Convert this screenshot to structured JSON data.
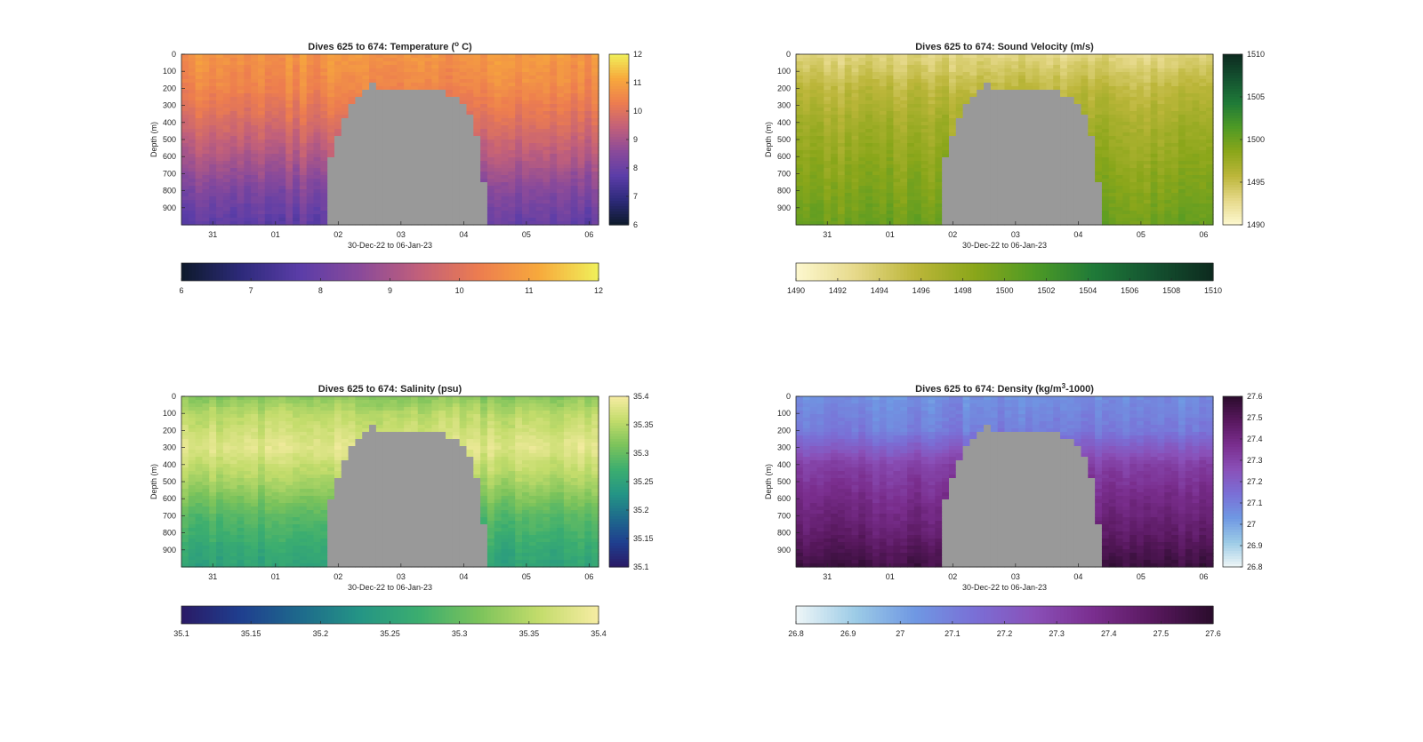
{
  "figure": {
    "panels": [
      {
        "id": "temperature",
        "title": "Dives 625 to 674: Temperature (",
        "title_sup": "o",
        "title_tail": " C)",
        "xlabel": "30-Dec-22 to 06-Jan-23",
        "ylabel": "Depth (m)",
        "xticks": [
          "31",
          "01",
          "02",
          "03",
          "04",
          "05",
          "06"
        ],
        "yticks": [
          "0",
          "100",
          "200",
          "300",
          "400",
          "500",
          "600",
          "700",
          "800",
          "900"
        ],
        "vertical_colorbar_ticks": [
          "12",
          "11",
          "10",
          "9",
          "8",
          "7",
          "6"
        ],
        "horizontal_colorbar_ticks": [
          "6",
          "7",
          "8",
          "9",
          "10",
          "11",
          "12"
        ],
        "colormap": [
          "#0d1a2b",
          "#2d2a7a",
          "#5b3da8",
          "#8a4a9a",
          "#c2607a",
          "#ed7d4f",
          "#f7a93c",
          "#f0f05a"
        ]
      },
      {
        "id": "sound-velocity",
        "title": "Dives 625 to 674: Sound Velocity (m/s)",
        "title_sup": "",
        "title_tail": "",
        "xlabel": "30-Dec-22 to 06-Jan-23",
        "ylabel": "Depth (m)",
        "xticks": [
          "31",
          "01",
          "02",
          "03",
          "04",
          "05",
          "06"
        ],
        "yticks": [
          "0",
          "100",
          "200",
          "300",
          "400",
          "500",
          "600",
          "700",
          "800",
          "900"
        ],
        "vertical_colorbar_ticks": [
          "1510",
          "1505",
          "1500",
          "1495",
          "1490"
        ],
        "horizontal_colorbar_ticks": [
          "1490",
          "1492",
          "1494",
          "1496",
          "1498",
          "1500",
          "1502",
          "1504",
          "1506",
          "1508",
          "1510"
        ],
        "colormap": [
          "#fdf8cf",
          "#e6d98a",
          "#bcb63a",
          "#8aa61a",
          "#4e9a25",
          "#1f7a38",
          "#145230",
          "#0d2a1f"
        ]
      },
      {
        "id": "salinity",
        "title": "Dives 625 to 674: Salinity (psu)",
        "title_sup": "",
        "title_tail": "",
        "xlabel": "30-Dec-22 to 06-Jan-23",
        "ylabel": "Depth (m)",
        "xticks": [
          "31",
          "01",
          "02",
          "03",
          "04",
          "05",
          "06"
        ],
        "yticks": [
          "0",
          "100",
          "200",
          "300",
          "400",
          "500",
          "600",
          "700",
          "800",
          "900"
        ],
        "vertical_colorbar_ticks": [
          "35.4",
          "35.35",
          "35.3",
          "35.25",
          "35.2",
          "35.15",
          "35.1"
        ],
        "horizontal_colorbar_ticks": [
          "35.1",
          "35.15",
          "35.2",
          "35.25",
          "35.3",
          "35.35",
          "35.4"
        ],
        "colormap": [
          "#2a1a66",
          "#1f3f8f",
          "#1e6a8c",
          "#249585",
          "#3cae6f",
          "#7cc35b",
          "#c3dc6b",
          "#f7eca3"
        ]
      },
      {
        "id": "density",
        "title": "Dives 625 to 674: Density (kg/m",
        "title_sup": "3",
        "title_tail": "-1000)",
        "xlabel": "30-Dec-22 to 06-Jan-23",
        "ylabel": "Depth (m)",
        "xticks": [
          "31",
          "01",
          "02",
          "03",
          "04",
          "05",
          "06"
        ],
        "yticks": [
          "0",
          "100",
          "200",
          "300",
          "400",
          "500",
          "600",
          "700",
          "800",
          "900"
        ],
        "vertical_colorbar_ticks": [
          "27.6",
          "27.5",
          "27.4",
          "27.3",
          "27.2",
          "27.1",
          "27",
          "26.9",
          "26.8"
        ],
        "horizontal_colorbar_ticks": [
          "26.8",
          "26.9",
          "27",
          "27.1",
          "27.2",
          "27.3",
          "27.4",
          "27.5",
          "27.6"
        ],
        "colormap": [
          "#eef6f7",
          "#9ccbe6",
          "#6f98e3",
          "#7a6fd6",
          "#8a50b8",
          "#7a2e8e",
          "#58185e",
          "#2a0c2c"
        ]
      }
    ]
  },
  "chart_data": [
    {
      "type": "heatmap",
      "title": "Dives 625 to 674: Temperature (o C)",
      "xlabel": "30-Dec-22 to 06-Jan-23",
      "ylabel": "Depth (m)",
      "x": [
        "31",
        "01",
        "02",
        "03",
        "04",
        "05",
        "06"
      ],
      "ylim": [
        0,
        1000
      ],
      "clim": [
        6,
        12
      ],
      "profile": {
        "depth": [
          0,
          200,
          400,
          600,
          800,
          1000
        ],
        "value": [
          10.8,
          10.5,
          9.9,
          9.2,
          8.4,
          7.8
        ]
      },
      "legend": "colorbar right and colorbar bottom"
    },
    {
      "type": "heatmap",
      "title": "Dives 625 to 674: Sound Velocity (m/s)",
      "xlabel": "30-Dec-22 to 06-Jan-23",
      "ylabel": "Depth (m)",
      "x": [
        "31",
        "01",
        "02",
        "03",
        "04",
        "05",
        "06"
      ],
      "ylim": [
        0,
        1000
      ],
      "clim": [
        1490,
        1510
      ],
      "profile": {
        "depth": [
          0,
          200,
          400,
          600,
          800,
          1000
        ],
        "value": [
          1493,
          1495.5,
          1497,
          1498,
          1499,
          1500
        ]
      },
      "legend": "colorbar right and colorbar bottom"
    },
    {
      "type": "heatmap",
      "title": "Dives 625 to 674: Salinity (psu)",
      "xlabel": "30-Dec-22 to 06-Jan-23",
      "ylabel": "Depth (m)",
      "x": [
        "31",
        "01",
        "02",
        "03",
        "04",
        "05",
        "06"
      ],
      "ylim": [
        0,
        1000
      ],
      "clim": [
        35.1,
        35.4
      ],
      "profile": {
        "depth": [
          0,
          100,
          300,
          500,
          700,
          900,
          1000
        ],
        "value": [
          35.32,
          35.35,
          35.38,
          35.34,
          35.29,
          35.26,
          35.25
        ]
      },
      "legend": "colorbar right and colorbar bottom"
    },
    {
      "type": "heatmap",
      "title": "Dives 625 to 674: Density (kg/m3-1000)",
      "xlabel": "30-Dec-22 to 06-Jan-23",
      "ylabel": "Depth (m)",
      "x": [
        "31",
        "01",
        "02",
        "03",
        "04",
        "05",
        "06"
      ],
      "ylim": [
        0,
        1000
      ],
      "clim": [
        26.8,
        27.6
      ],
      "profile": {
        "depth": [
          0,
          200,
          400,
          600,
          800,
          1000
        ],
        "value": [
          27.05,
          27.1,
          27.3,
          27.38,
          27.45,
          27.55
        ]
      },
      "legend": "colorbar right and colorbar bottom"
    }
  ]
}
